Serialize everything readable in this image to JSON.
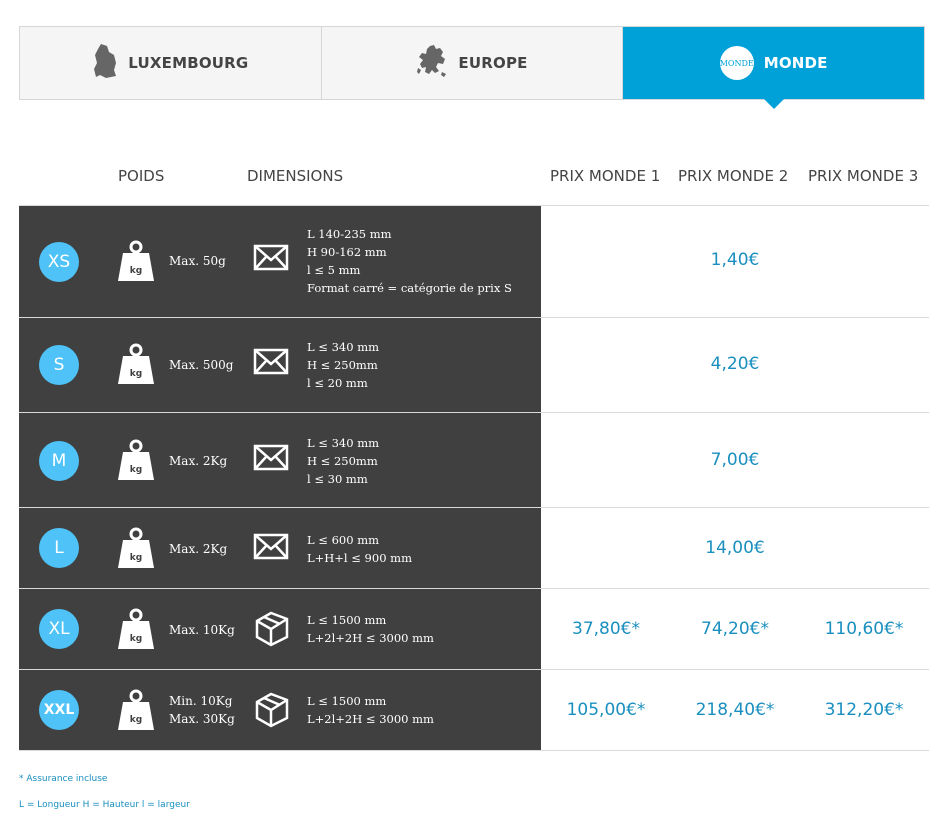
{
  "tabs": [
    {
      "label": "LUXEMBOURG",
      "icon": "luxembourg-map-icon",
      "active": false
    },
    {
      "label": "EUROPE",
      "icon": "europe-map-icon",
      "active": false
    },
    {
      "label": "MONDE",
      "icon": "monde-badge-icon",
      "active": true,
      "badge_text": "MONDE"
    }
  ],
  "header": {
    "poids": "POIDS",
    "dimensions": "DIMENSIONS",
    "prix1": "PRIX MONDE 1",
    "prix2": "PRIX MONDE 2",
    "prix3": "PRIX MONDE 3"
  },
  "rows": [
    {
      "size": "XS",
      "weight_lines": [
        "Max. 50g"
      ],
      "dim_icon": "envelope-icon",
      "dim_lines": [
        "L 140-235 mm",
        "H 90-162 mm",
        "l ≤ 5 mm",
        "Format carré = catégorie de prix S"
      ],
      "price_single": "1,40€"
    },
    {
      "size": "S",
      "weight_lines": [
        "Max. 500g"
      ],
      "dim_icon": "envelope-icon",
      "dim_lines": [
        "L ≤ 340 mm",
        "H ≤ 250mm",
        "l ≤ 20 mm"
      ],
      "price_single": "4,20€"
    },
    {
      "size": "M",
      "weight_lines": [
        "Max. 2Kg"
      ],
      "dim_icon": "envelope-icon",
      "dim_lines": [
        "L ≤ 340 mm",
        "H ≤ 250mm",
        "l ≤ 30 mm"
      ],
      "price_single": "7,00€"
    },
    {
      "size": "L",
      "weight_lines": [
        "Max. 2Kg"
      ],
      "dim_icon": "envelope-icon",
      "dim_lines": [
        "L ≤ 600 mm",
        "L+H+l ≤ 900 mm"
      ],
      "price_single": "14,00€"
    },
    {
      "size": "XL",
      "weight_lines": [
        "Max. 10Kg"
      ],
      "dim_icon": "package-icon",
      "dim_lines": [
        "L ≤ 1500 mm",
        "L+2l+2H ≤ 3000 mm"
      ],
      "prices": [
        "37,80€*",
        "74,20€*",
        "110,60€*"
      ]
    },
    {
      "size": "XXL",
      "weight_lines": [
        "Min. 10Kg",
        "Max. 30Kg"
      ],
      "dim_icon": "package-icon",
      "dim_lines": [
        "L ≤ 1500 mm",
        "L+2l+2H ≤ 3000 mm"
      ],
      "prices": [
        "105,00€*",
        "218,40€*",
        "312,20€*"
      ]
    }
  ],
  "weight_icon_label": "kg",
  "footnotes": {
    "assurance": "* Assurance incluse",
    "legend": "L = Longueur H = Hauteur l = largeur"
  },
  "colors": {
    "accent": "#00a1d8",
    "badge": "#4fc3f7",
    "dark_row": "#404040",
    "price": "#1a8fbf"
  }
}
